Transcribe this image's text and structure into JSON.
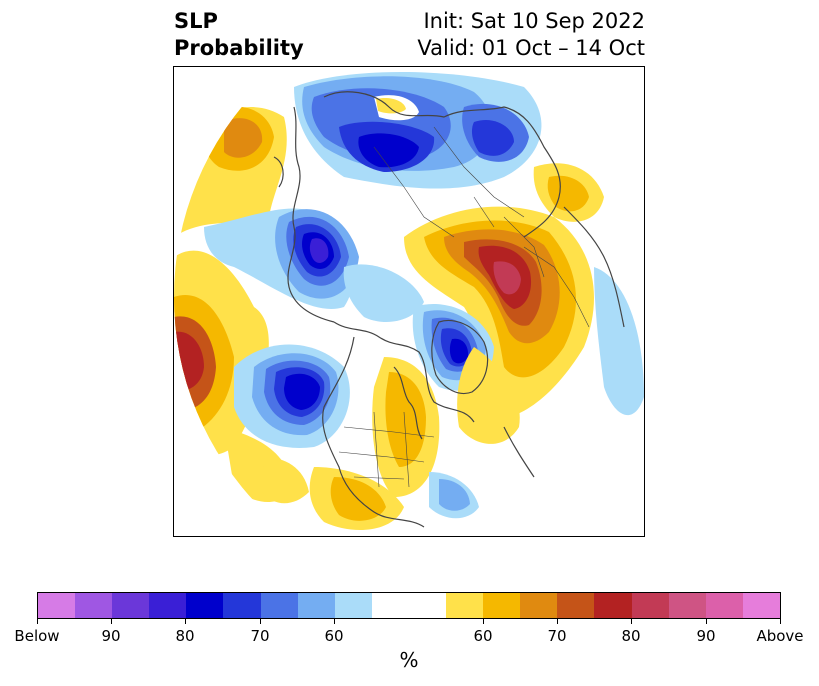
{
  "header": {
    "title_line1": "SLP",
    "title_line2": "Probability",
    "init_text": "Init: Sat 10 Sep 2022",
    "valid_text": "Valid: 01 Oct – 14 Oct"
  },
  "colorbar": {
    "unit": "%",
    "below_colors": [
      "#d67be6",
      "#9f57e3",
      "#6b37d9",
      "#3a1fd6",
      "#0000cc",
      "#2437d9",
      "#4b73e6",
      "#74adf2",
      "#aadcf9"
    ],
    "neutral_color": "#ffffff",
    "above_colors": [
      "#ffe14a",
      "#f5b800",
      "#e08a10",
      "#c55418",
      "#b32222",
      "#c23a55",
      "#cf5484",
      "#dc60aa",
      "#e67ddb"
    ],
    "tick_labels": [
      "Below",
      "90",
      "80",
      "70",
      "60",
      "60",
      "70",
      "80",
      "90",
      "Above"
    ]
  },
  "map": {
    "projection": "polar-stereographic-north",
    "colors": {
      "coast": "#444444",
      "grid_white": "#ffffff"
    }
  }
}
